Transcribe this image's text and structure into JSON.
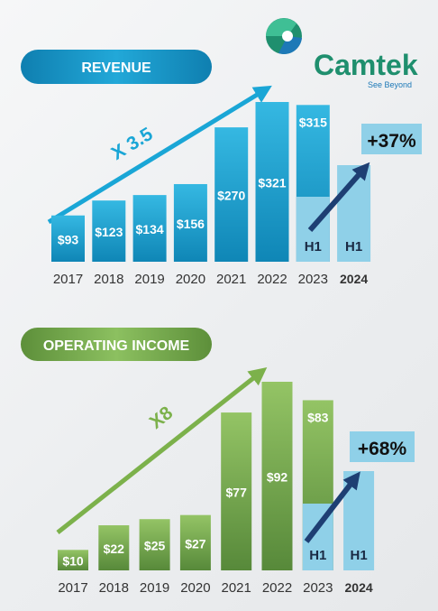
{
  "brand": {
    "name": "Camtek",
    "tagline": "See Beyond"
  },
  "colors": {
    "revenue_dark": "#1491bf",
    "revenue_light": "#2fb4de",
    "revenue_accent": "#1aa6d6",
    "h1_fill": "#8fd0e8",
    "income_dark": "#5b8f3a",
    "income_light": "#8ebf5f",
    "income_accent": "#7cb14b",
    "arrow_dark": "#1e3f73",
    "logo_green": "#1f8f6e",
    "logo_blue": "#1d79b7"
  },
  "chart_data": [
    {
      "type": "bar",
      "title": "REVENUE",
      "categories": [
        "2017",
        "2018",
        "2019",
        "2020",
        "2021",
        "2022",
        "2023",
        "2024"
      ],
      "values": [
        93,
        123,
        134,
        156,
        270,
        321,
        315,
        null
      ],
      "value_labels": [
        "$93",
        "$123",
        "$134",
        "$156",
        "$270",
        "$321",
        "$315",
        ""
      ],
      "h1": {
        "label": "H1",
        "years": [
          "2023",
          "2024"
        ],
        "change_label": "+37%"
      },
      "growth_label": "X 3.5"
    },
    {
      "type": "bar",
      "title": "OPERATING INCOME",
      "categories": [
        "2017",
        "2018",
        "2019",
        "2020",
        "2021",
        "2022",
        "2023",
        "2024"
      ],
      "values": [
        10,
        22,
        25,
        27,
        77,
        92,
        83,
        null
      ],
      "value_labels": [
        "$10",
        "$22",
        "$25",
        "$27",
        "$77",
        "$92",
        "$83",
        ""
      ],
      "h1": {
        "label": "H1",
        "years": [
          "2023",
          "2024"
        ],
        "change_label": "+68%"
      },
      "growth_label": "X8"
    }
  ]
}
